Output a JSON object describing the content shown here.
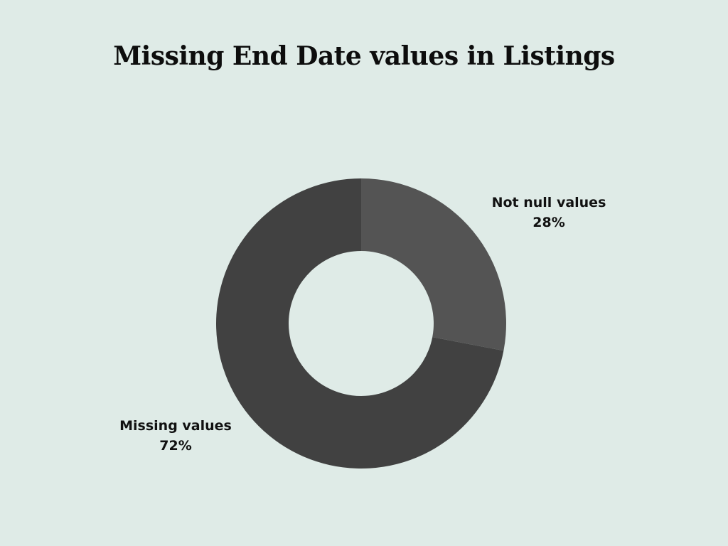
{
  "chart_data": {
    "type": "pie",
    "variant": "donut",
    "title": "Missing End Date values in Listings",
    "start_angle_deg": 0,
    "direction": "clockwise",
    "slices": [
      {
        "label": "Not null values",
        "value": 28,
        "value_label": "28%",
        "color": "#545454"
      },
      {
        "label": "Missing values",
        "value": 72,
        "value_label": "72%",
        "color": "#414141"
      }
    ],
    "legend": "none",
    "background_color": "#dfebe7"
  }
}
